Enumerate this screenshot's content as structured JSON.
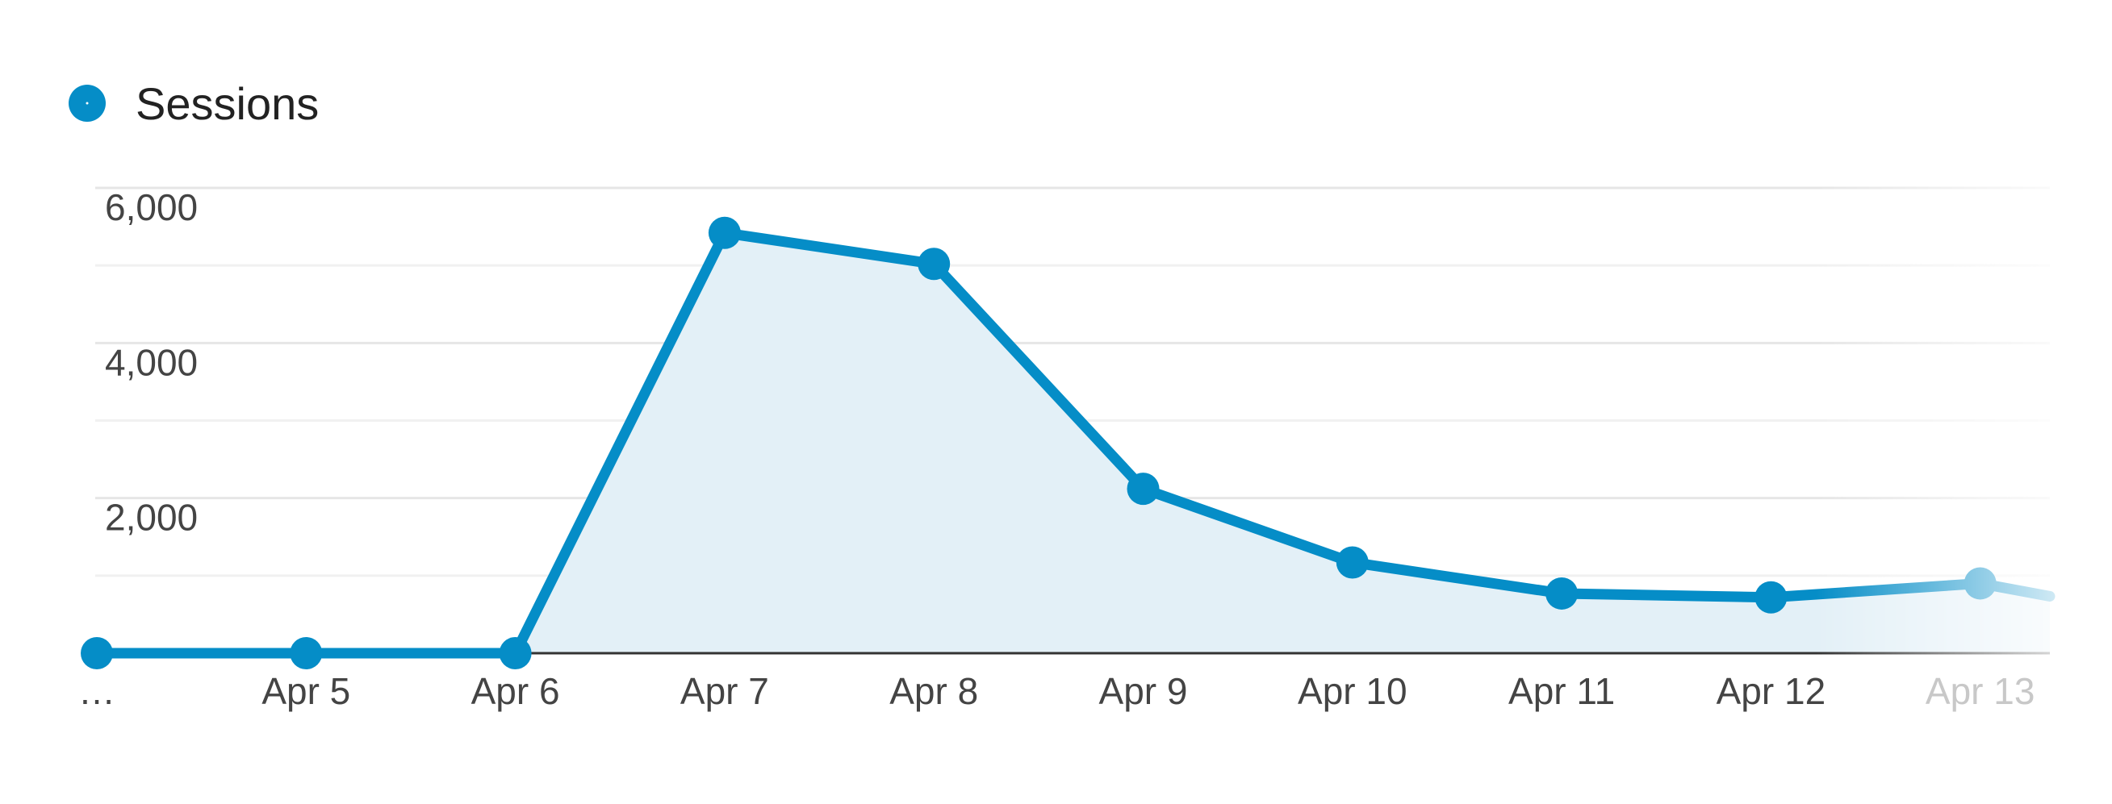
{
  "chart_data": {
    "type": "area",
    "title": "",
    "xlabel": "",
    "ylabel": "",
    "legend": {
      "position": "top-left",
      "entries": [
        {
          "label": "Sessions",
          "color": "#058dc7"
        }
      ]
    },
    "categories": [
      "…",
      "Apr 5",
      "Apr 6",
      "Apr 7",
      "Apr 8",
      "Apr 9",
      "Apr 10",
      "Apr 11",
      "Apr 12",
      "Apr 13"
    ],
    "series": [
      {
        "name": "Sessions",
        "color": "#058dc7",
        "fill": "#e3f0f7",
        "values": [
          0,
          0,
          0,
          5420,
          5020,
          2120,
          1170,
          770,
          720,
          900
        ]
      }
    ],
    "ylim": [
      0,
      6000
    ],
    "yticks": [
      {
        "value": 2000,
        "label": "2,000"
      },
      {
        "value": 4000,
        "label": "4,000"
      },
      {
        "value": 6000,
        "label": "6,000"
      }
    ],
    "grid": true,
    "fade_right": true
  }
}
